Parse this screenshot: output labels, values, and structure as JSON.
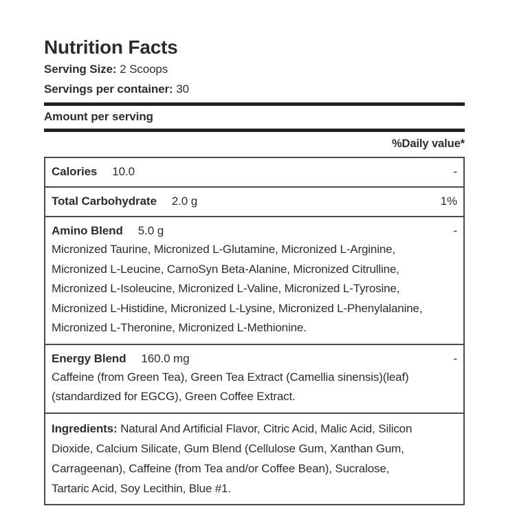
{
  "header": {
    "title": "Nutrition Facts",
    "serving_size_label": "Serving Size:",
    "serving_size_value": "2 Scoops",
    "servings_per_container_label": "Servings per container:",
    "servings_per_container_value": "30",
    "amount_per_serving": "Amount per serving",
    "daily_value_note": "%Daily value*"
  },
  "colors": {
    "text": "#2d2d2d",
    "divider_bar": "#222222",
    "table_border": "#4a4a4a",
    "background": "#ffffff"
  },
  "table": {
    "rows": [
      {
        "name": "Calories",
        "amount": "10.0",
        "daily_value": "-"
      },
      {
        "name": "Total Carbohydrate",
        "amount": "2.0 g",
        "daily_value": "1%"
      },
      {
        "name": "Amino Blend",
        "amount": "5.0 g",
        "daily_value": "-",
        "description": "Micronized Taurine, Micronized L-Glutamine, Micronized L-Arginine,\nMicronized L-Leucine, CarnoSyn Beta-Alanine, Micronized Citrulline,\nMicronized L-Isoleucine, Micronized L-Valine, Micronized L-Tyrosine,\nMicronized L-Histidine, Micronized L-Lysine, Micronized L-Phenylalanine,\nMicronized L-Theronine, Micronized L-Methionine."
      },
      {
        "name": "Energy Blend",
        "amount": "160.0 mg",
        "daily_value": "-",
        "description": "Caffeine (from Green Tea), Green Tea Extract (Camellia sinensis)(leaf)\n(standardized for EGCG), Green Coffee Extract."
      },
      {
        "name": "Ingredients:",
        "description": "Natural And Artificial Flavor, Citric Acid, Malic Acid, Silicon\nDioxide, Calcium Silicate, Gum Blend (Cellulose Gum, Xanthan Gum,\nCarrageenan), Caffeine (from Tea and/or Coffee Bean), Sucralose,\nTartaric Acid, Soy Lecithin, Blue #1."
      }
    ]
  }
}
